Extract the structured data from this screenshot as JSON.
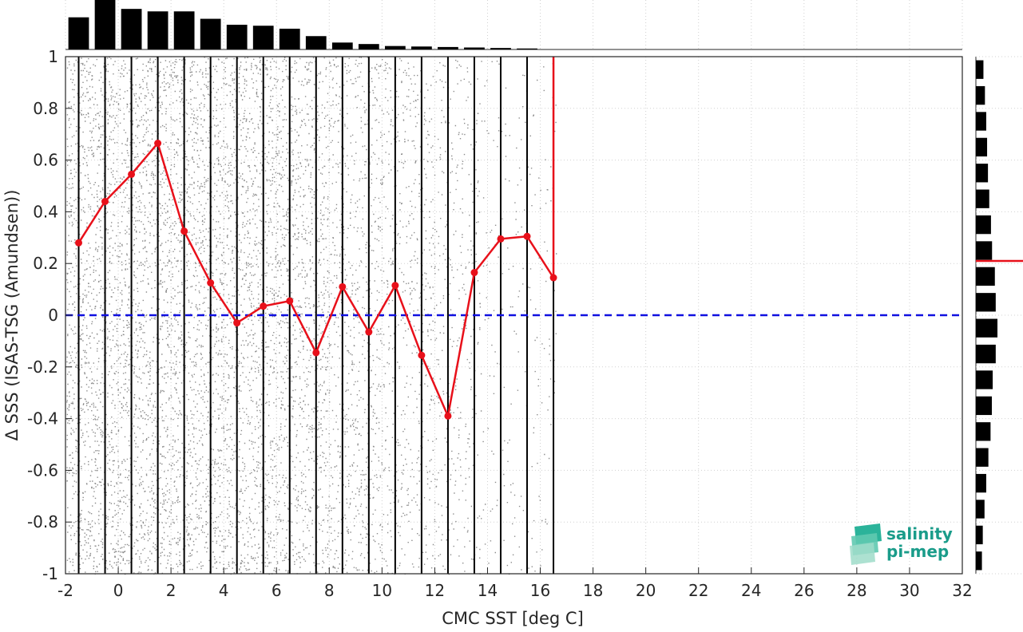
{
  "chart_data": {
    "type": "scatter",
    "xlabel": "CMC SST [deg C]",
    "ylabel": "Δ SSS (ISAS-TSG (Amundsen))",
    "xlim": [
      -2,
      32
    ],
    "ylim": [
      -1,
      1
    ],
    "x_ticks": [
      -2,
      0,
      2,
      4,
      6,
      8,
      10,
      12,
      14,
      16,
      18,
      20,
      22,
      24,
      26,
      28,
      30,
      32
    ],
    "y_ticks": [
      -1,
      -0.8,
      -0.6,
      -0.4,
      -0.2,
      0,
      0.2,
      0.4,
      0.6,
      0.8,
      1
    ],
    "x_tick_labels": [
      "-2",
      "0",
      "2",
      "4",
      "6",
      "8",
      "10",
      "12",
      "14",
      "16",
      "18",
      "20",
      "22",
      "24",
      "26",
      "28",
      "30",
      "32"
    ],
    "y_tick_labels": [
      "-1",
      "-0.8",
      "-0.6",
      "-0.4",
      "-0.2",
      "0",
      "0.2",
      "0.4",
      "0.6",
      "0.8",
      "1"
    ],
    "grid": true,
    "scatter_cloud": {
      "color": "#8c8c8c",
      "bins": [
        {
          "x0": -2,
          "x1": 3,
          "density": 1.0
        },
        {
          "x0": 3,
          "x1": 6.5,
          "density": 0.95
        },
        {
          "x0": 6.5,
          "x1": 8,
          "density": 0.8
        },
        {
          "x0": 8,
          "x1": 10,
          "density": 0.6
        },
        {
          "x0": 10,
          "x1": 12,
          "density": 0.45
        },
        {
          "x0": 12,
          "x1": 13.7,
          "density": 0.3
        },
        {
          "x0": 13.7,
          "x1": 16.6,
          "density": 0.12
        }
      ]
    },
    "bin_edges": [
      -1.5,
      -0.5,
      0.5,
      1.5,
      2.5,
      3.5,
      4.5,
      5.5,
      6.5,
      7.5,
      8.5,
      9.5,
      10.5,
      11.5,
      12.5,
      13.5,
      14.5,
      15.5,
      16.5
    ],
    "series": [
      {
        "type": "line",
        "color": "#e8101a",
        "x": [
          -1.5,
          -0.5,
          0.5,
          1.5,
          2.5,
          3.5,
          4.5,
          5.5,
          6.5,
          7.5,
          8.5,
          9.5,
          10.5,
          11.5,
          12.5,
          13.5,
          14.5,
          15.5,
          16.5
        ],
        "y": [
          0.28,
          0.44,
          0.545,
          0.665,
          0.325,
          0.125,
          -0.03,
          0.035,
          0.055,
          -0.145,
          0.11,
          -0.065,
          0.115,
          -0.155,
          -0.39,
          0.165,
          0.295,
          0.305,
          0.145
        ]
      }
    ],
    "red_vertical_line": {
      "x": 16.5,
      "y0": 0.145,
      "y1": 1.0,
      "color": "#e8101a"
    },
    "zero_line": {
      "y": 0,
      "color": "#1010e0",
      "style": "dashed"
    },
    "top_histogram": {
      "x": [
        -1.5,
        -0.5,
        0.5,
        1.5,
        2.5,
        3.5,
        4.5,
        5.5,
        6.5,
        7.5,
        8.5,
        9.5,
        10.5,
        11.5,
        12.5,
        13.5,
        14.5,
        15.5
      ],
      "counts": [
        0.65,
        1.0,
        0.82,
        0.77,
        0.77,
        0.62,
        0.5,
        0.48,
        0.42,
        0.27,
        0.14,
        0.11,
        0.07,
        0.06,
        0.05,
        0.04,
        0.03,
        0.02
      ]
    },
    "right_histogram": {
      "y_centers": [
        0.95,
        0.85,
        0.75,
        0.65,
        0.55,
        0.45,
        0.35,
        0.25,
        0.15,
        0.05,
        -0.05,
        -0.15,
        -0.25,
        -0.35,
        -0.45,
        -0.55,
        -0.65,
        -0.75,
        -0.85,
        -0.95
      ],
      "counts": [
        0.35,
        0.42,
        0.48,
        0.52,
        0.56,
        0.62,
        0.7,
        0.75,
        0.88,
        0.92,
        1.0,
        0.92,
        0.78,
        0.74,
        0.68,
        0.58,
        0.48,
        0.4,
        0.32,
        0.28
      ],
      "mean_y": 0.21,
      "mean_color": "#e8101a"
    },
    "logo": {
      "line1": "salinity",
      "line2": "pi-mep"
    }
  }
}
